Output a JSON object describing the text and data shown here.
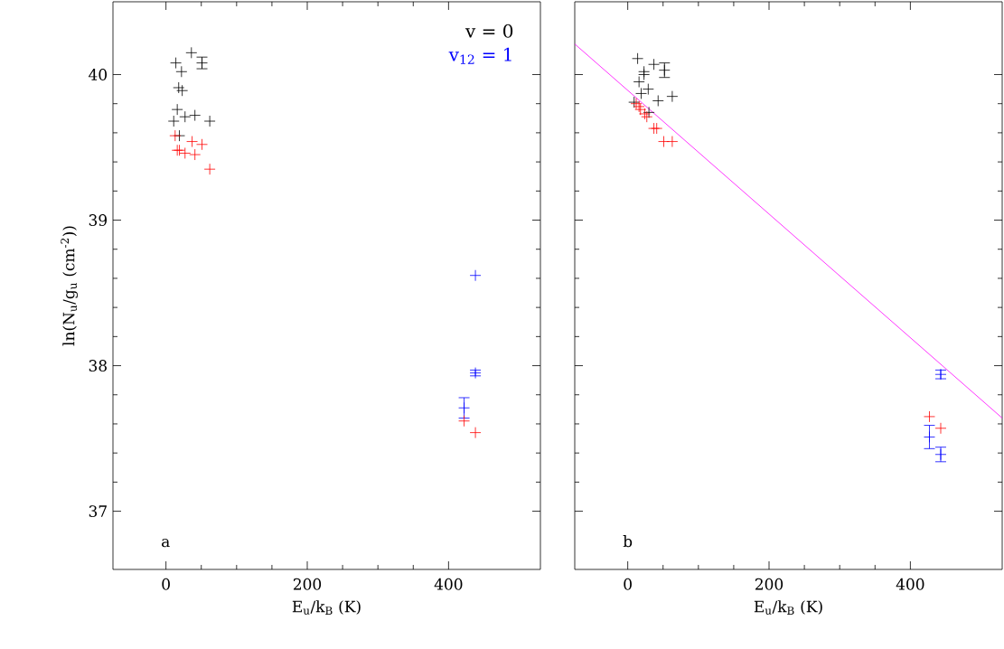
{
  "chart_data": [
    {
      "type": "scatter",
      "xlabel": "E$_{u}$/k$_{B}$ (K)",
      "ylabel": "ln(N$_{u}$/g$_{u}$ (cm$^{-2}$))",
      "xlim": [
        -75,
        530
      ],
      "ylim": [
        36.6,
        40.5
      ],
      "xticks": [
        0,
        200,
        400
      ],
      "yticks": [
        37,
        38,
        39,
        40
      ],
      "marker": "cross",
      "legend": "top right",
      "annotations": [
        "a"
      ],
      "series": [
        {
          "name": "v = 0",
          "color": "#000000",
          "x": [
            36,
            51,
            14,
            22,
            18,
            23,
            16,
            27,
            41,
            11,
            62,
            19
          ],
          "values": [
            40.15,
            40.08,
            40.08,
            40.02,
            39.91,
            39.89,
            39.76,
            39.71,
            39.72,
            39.68,
            39.68,
            39.58
          ],
          "errors": [
            null,
            0.04,
            null,
            null,
            null,
            null,
            null,
            null,
            null,
            null,
            null,
            null
          ]
        },
        {
          "color": "#ff0000",
          "x": [
            13,
            37,
            51,
            16,
            19,
            27,
            41,
            62,
            422,
            438
          ],
          "values": [
            39.58,
            39.54,
            39.52,
            39.48,
            39.48,
            39.46,
            39.45,
            39.35,
            37.62,
            37.54
          ]
        },
        {
          "name": "v$_{12}$ = 1",
          "color": "#0000ff",
          "x": [
            438,
            438,
            422
          ],
          "values": [
            38.62,
            37.95,
            37.71
          ],
          "errors": [
            null,
            0.02,
            0.07
          ]
        }
      ]
    },
    {
      "type": "scatter",
      "xlabel": "E$_{u}$/k$_{B}$ (K)",
      "xlim": [
        -75,
        530
      ],
      "ylim": [
        36.6,
        40.5
      ],
      "xticks": [
        0,
        200,
        400
      ],
      "yticks": [
        37,
        38,
        39,
        40
      ],
      "tick_labels": "x",
      "marker": "cross",
      "annotations": [
        "b"
      ],
      "series": [
        {
          "color": "#000000",
          "x": [
            14,
            37,
            52,
            23,
            23,
            16,
            29,
            19,
            63,
            43,
            9,
            30
          ],
          "values": [
            40.11,
            40.07,
            40.03,
            40.02,
            40.0,
            39.95,
            39.9,
            39.87,
            39.85,
            39.82,
            39.81,
            39.74
          ],
          "errors": [
            null,
            null,
            0.05,
            null,
            null,
            null,
            null,
            null,
            null,
            null,
            null,
            null
          ]
        },
        {
          "color": "#ff0000",
          "x": [
            12,
            16,
            18,
            24,
            27,
            37,
            41,
            51,
            63,
            427,
            443
          ],
          "values": [
            39.8,
            39.78,
            39.76,
            39.73,
            39.71,
            39.63,
            39.63,
            39.54,
            39.54,
            37.65,
            37.57
          ]
        },
        {
          "color": "#0000ff",
          "x": [
            443,
            427,
            443
          ],
          "values": [
            37.94,
            37.51,
            37.39
          ],
          "errors": [
            0.03,
            0.08,
            0.05
          ]
        },
        {
          "type": "line",
          "color": "#ff00ff",
          "marker": "none",
          "x": [
            -75,
            530
          ],
          "values": [
            40.21,
            37.64
          ]
        }
      ]
    }
  ]
}
